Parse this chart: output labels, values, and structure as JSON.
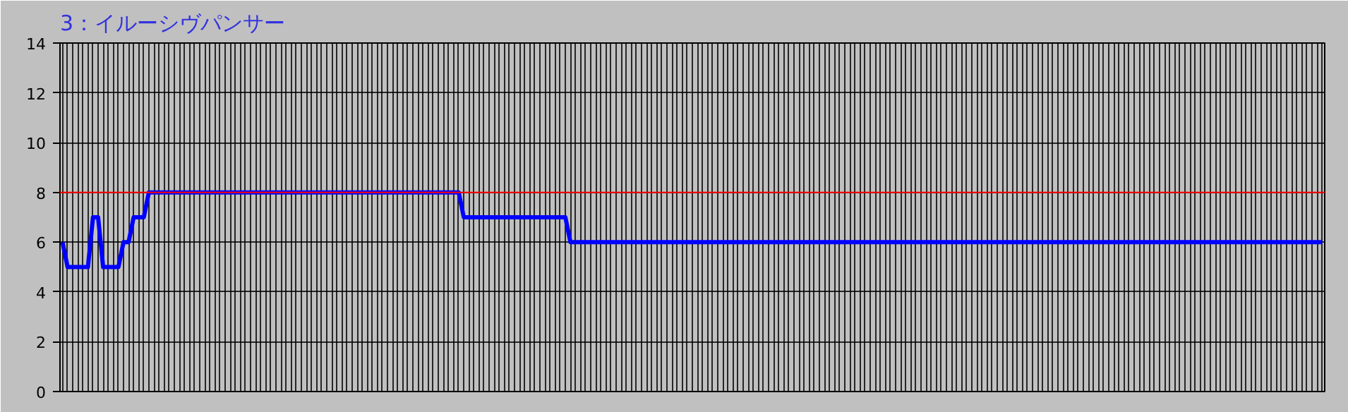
{
  "chart_data": {
    "type": "line",
    "title": "3：イルーシヴパンサー",
    "categories": [
      null,
      null,
      null,
      null,
      null,
      null,
      null,
      null,
      null,
      null,
      null,
      null,
      null,
      null,
      null,
      null,
      null,
      null,
      null,
      null,
      null,
      null,
      null,
      null,
      null,
      null,
      null,
      null,
      null,
      null,
      null,
      null,
      null,
      null,
      null,
      null,
      null,
      null,
      null,
      null,
      null,
      null,
      null,
      null,
      null,
      null,
      null,
      null,
      null,
      null,
      null,
      null,
      null,
      null,
      null,
      null,
      null,
      null,
      null,
      null,
      null,
      null,
      null,
      null,
      null,
      null,
      null,
      null,
      null,
      null,
      null,
      null,
      null,
      null,
      null,
      null,
      null,
      null,
      null,
      null,
      null,
      null,
      null,
      null,
      null,
      null,
      null,
      null,
      null,
      null,
      null,
      null,
      null,
      null,
      null,
      null,
      null,
      null,
      null,
      null,
      null,
      null,
      null,
      null,
      null,
      null,
      null,
      null,
      null,
      null,
      null,
      null,
      null,
      null,
      null,
      null,
      null,
      null,
      null,
      null,
      null,
      null,
      null,
      null,
      null,
      null,
      null,
      null,
      null,
      null,
      null,
      null,
      null,
      null,
      null,
      null,
      null,
      null,
      null,
      null,
      null,
      null,
      null,
      null,
      null,
      null,
      null,
      null,
      null,
      null,
      null,
      null,
      null,
      null,
      null,
      null,
      null,
      null,
      null,
      null,
      null,
      null,
      null,
      null,
      null,
      null,
      null,
      null,
      null,
      null,
      null,
      null,
      null,
      null,
      null,
      null,
      null,
      null,
      null,
      null,
      null,
      null,
      null,
      null,
      null,
      null,
      null,
      null,
      null,
      null,
      null,
      null,
      null,
      null,
      null,
      null,
      null,
      null,
      null,
      null,
      null,
      null,
      null,
      null,
      null,
      null,
      null,
      null,
      null,
      null,
      null,
      null,
      null,
      null,
      null,
      null,
      null,
      null,
      null,
      null,
      null,
      null,
      null,
      null,
      null,
      null,
      null,
      null,
      null,
      null,
      null,
      null,
      null,
      null,
      null,
      null,
      null,
      null,
      null,
      null,
      null,
      null,
      null,
      null,
      null,
      null,
      null,
      null,
      null
    ],
    "series": [
      {
        "color": "#0000ff",
        "values": [
          6,
          5,
          5,
          5,
          5,
          5,
          7,
          7,
          5,
          5,
          5,
          5,
          6,
          6,
          7,
          7,
          7,
          8,
          8,
          8,
          8,
          8,
          8,
          8,
          8,
          8,
          8,
          8,
          8,
          8,
          8,
          8,
          8,
          8,
          8,
          8,
          8,
          8,
          8,
          8,
          8,
          8,
          8,
          8,
          8,
          8,
          8,
          8,
          8,
          8,
          8,
          8,
          8,
          8,
          8,
          8,
          8,
          8,
          8,
          8,
          8,
          8,
          8,
          8,
          8,
          8,
          8,
          8,
          8,
          8,
          8,
          8,
          8,
          8,
          8,
          8,
          8,
          8,
          8,
          7,
          7,
          7,
          7,
          7,
          7,
          7,
          7,
          7,
          7,
          7,
          7,
          7,
          7,
          7,
          7,
          7,
          7,
          7,
          7,
          7,
          6,
          6,
          6,
          6,
          6,
          6,
          6,
          6,
          6,
          6,
          6,
          6,
          6,
          6,
          6,
          6,
          6,
          6,
          6,
          6,
          6,
          6,
          6,
          6,
          6,
          6,
          6,
          6,
          6,
          6,
          6,
          6,
          6,
          6,
          6,
          6,
          6,
          6,
          6,
          6,
          6,
          6,
          6,
          6,
          6,
          6,
          6,
          6,
          6,
          6,
          6,
          6,
          6,
          6,
          6,
          6,
          6,
          6,
          6,
          6,
          6,
          6,
          6,
          6,
          6,
          6,
          6,
          6,
          6,
          6,
          6,
          6,
          6,
          6,
          6,
          6,
          6,
          6,
          6,
          6,
          6,
          6,
          6,
          6,
          6,
          6,
          6,
          6,
          6,
          6,
          6,
          6,
          6,
          6,
          6,
          6,
          6,
          6,
          6,
          6,
          6,
          6,
          6,
          6,
          6,
          6,
          6,
          6,
          6,
          6,
          6,
          6,
          6,
          6,
          6,
          6,
          6,
          6,
          6,
          6,
          6,
          6,
          6,
          6,
          6,
          6,
          6,
          6,
          6,
          6,
          6,
          6,
          6,
          6,
          6,
          6,
          6,
          6,
          6,
          6,
          6,
          6,
          6,
          6,
          6,
          6,
          6,
          6,
          6
        ]
      }
    ],
    "ylim": [
      0,
      14
    ],
    "yticks": [
      0,
      2,
      4,
      6,
      8,
      10,
      12,
      14
    ],
    "ref_lines": [
      {
        "axis": "y",
        "value": 8,
        "color": "#ff0000"
      }
    ],
    "grid": true,
    "tick_labels": "y",
    "marker": "none",
    "line_style": "solid"
  }
}
